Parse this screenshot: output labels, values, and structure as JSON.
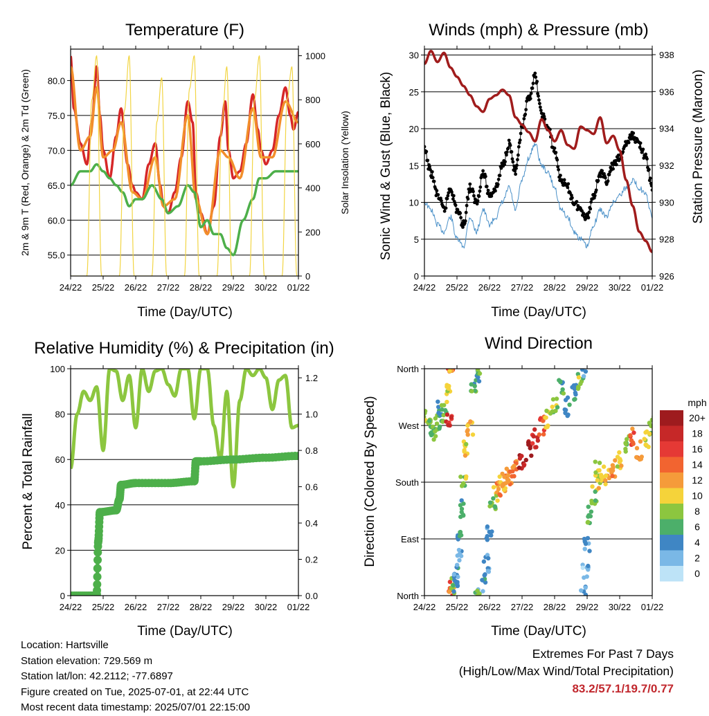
{
  "panels": {
    "temperature": {
      "title": "Temperature (F)",
      "ylabel": "2m & 9m T (Red, Orange) & 2m Td (Green)",
      "y2label": "Solar Insolation (Yellow)",
      "xlabel": "Time (Day/UTC)"
    },
    "winds": {
      "title": "Winds (mph) & Pressure (mb)",
      "ylabel": "Sonic Wind & Gust (Blue, Black)",
      "y2label": "Station Pressure (Maroon)",
      "xlabel": "Time (Day/UTC)"
    },
    "humidity": {
      "title": "Relative Humidity (%) & Precipitation (in)",
      "ylabel": "Percent & Total Rainfall",
      "xlabel": "Time (Day/UTC)"
    },
    "direction": {
      "title": "Wind Direction",
      "ylabel": "Direction (Colored By Speed)",
      "xlabel": "Time (Day/UTC)"
    }
  },
  "colorbar": {
    "unit": "mph",
    "labels": [
      "20+",
      "18",
      "16",
      "14",
      "12",
      "10",
      "8",
      "6",
      "4",
      "2",
      "0"
    ],
    "colors": [
      "#9e1b1e",
      "#c62828",
      "#e53935",
      "#f26430",
      "#f59b3a",
      "#f5d33a",
      "#8cc63f",
      "#4caf6a",
      "#3f86c4",
      "#7ab8e6",
      "#bde3f7"
    ]
  },
  "station": {
    "location": "Location: Hartsville",
    "elevation": "Station elevation: 729.569 m",
    "latlon": "Station lat/lon: 42.2112; -77.6897",
    "created": "Figure created on Tue, 2025-07-01, at 22:44 UTC",
    "recent": "Most recent data timestamp: 2025/07/01 22:15:00"
  },
  "extremes": {
    "line1": "Extremes For Past 7 Days",
    "line2": "(High/Low/Max Wind/Total Precipitation)",
    "values": "83.2/57.1/19.7/0.77"
  },
  "chart_data": [
    {
      "type": "line",
      "title": "Temperature (F)",
      "xlabel": "Time (Day/UTC)",
      "ylabel": "2m & 9m T (Red, Orange) & 2m Td (Green)",
      "y2label": "Solar Insolation (Yellow)",
      "x_ticks": [
        "24/22",
        "25/22",
        "26/22",
        "27/22",
        "28/22",
        "29/22",
        "30/22",
        "01/22"
      ],
      "xlim": [
        0,
        7
      ],
      "ylim": [
        52,
        84.5
      ],
      "y_ticks": [
        "55.0",
        "60.0",
        "65.0",
        "70.0",
        "75.0",
        "80.0"
      ],
      "y2lim": [
        0,
        1030
      ],
      "y2_ticks": [
        "0",
        "200",
        "400",
        "600",
        "800",
        "1000"
      ],
      "series": [
        {
          "color": "#d62728",
          "x": [
            0,
            0.1,
            0.3,
            0.5,
            0.65,
            0.8,
            0.9,
            1.0,
            1.2,
            1.4,
            1.55,
            1.75,
            1.9,
            2.0,
            2.2,
            2.4,
            2.6,
            2.75,
            2.85,
            3.0,
            3.2,
            3.4,
            3.6,
            3.75,
            3.85,
            4.0,
            4.2,
            4.4,
            4.6,
            4.75,
            4.85,
            5.0,
            5.2,
            5.4,
            5.6,
            5.75,
            5.85,
            6.0,
            6.2,
            6.4,
            6.6,
            6.75,
            6.85,
            7.0
          ],
          "y": [
            83.5,
            76,
            71,
            68,
            74,
            82,
            75,
            70,
            66,
            72,
            76,
            68,
            65,
            64,
            63,
            68,
            71,
            65,
            62,
            61,
            64,
            69,
            77,
            74,
            64,
            61,
            58,
            62,
            72,
            77,
            70,
            66,
            67,
            71,
            78,
            73,
            70,
            68,
            70,
            75,
            79,
            75,
            73,
            75.5
          ]
        },
        {
          "color": "#f28e2b",
          "x": [
            0,
            0.3,
            0.6,
            0.8,
            1.0,
            1.3,
            1.55,
            1.9,
            2.2,
            2.6,
            2.85,
            3.2,
            3.6,
            3.85,
            4.2,
            4.6,
            4.85,
            5.2,
            5.6,
            5.85,
            6.2,
            6.6,
            7.0
          ],
          "y": [
            82,
            70,
            72,
            79,
            69,
            70,
            74,
            64,
            63,
            69,
            62,
            63,
            75,
            63,
            58,
            70,
            69,
            66,
            76,
            69,
            69,
            77,
            74
          ]
        },
        {
          "color": "#4daf4a",
          "x": [
            0,
            0.3,
            0.6,
            0.8,
            1.0,
            1.2,
            1.4,
            1.6,
            1.8,
            2.0,
            2.2,
            2.5,
            2.8,
            3.0,
            3.3,
            3.6,
            3.8,
            4.0,
            4.2,
            4.4,
            4.6,
            4.8,
            5.0,
            5.3,
            5.6,
            5.8,
            6.0,
            6.3,
            6.6,
            6.8,
            7.0
          ],
          "y": [
            65,
            67,
            67,
            68,
            67,
            66,
            65,
            64,
            62,
            63,
            63,
            65,
            63,
            61,
            62,
            65,
            64,
            59,
            60,
            58,
            58,
            56,
            55,
            60,
            63,
            66,
            66,
            67,
            67,
            67,
            67
          ]
        },
        {
          "color": "#f2d544",
          "axis": "y2",
          "x": [
            0,
            0.5,
            0.65,
            0.8,
            0.95,
            1.5,
            1.65,
            1.8,
            1.95,
            2.5,
            2.65,
            2.8,
            2.95,
            3.5,
            3.65,
            3.8,
            3.95,
            4.5,
            4.65,
            4.8,
            4.95,
            5.5,
            5.65,
            5.8,
            5.95,
            6.5,
            6.65,
            6.8,
            6.95
          ],
          "y": [
            0,
            0,
            800,
            1000,
            0,
            0,
            750,
            1000,
            0,
            0,
            700,
            900,
            0,
            0,
            850,
            1000,
            0,
            0,
            700,
            950,
            0,
            0,
            800,
            1000,
            0,
            0,
            800,
            950,
            0
          ]
        }
      ]
    },
    {
      "type": "line",
      "title": "Winds (mph) & Pressure (mb)",
      "xlabel": "Time (Day/UTC)",
      "ylabel": "Sonic Wind & Gust (Blue, Black)",
      "y2label": "Station Pressure (Maroon)",
      "x_ticks": [
        "24/22",
        "25/22",
        "26/22",
        "27/22",
        "28/22",
        "29/22",
        "30/22",
        "01/22"
      ],
      "xlim": [
        0,
        7
      ],
      "ylim": [
        0,
        30.8
      ],
      "y_ticks": [
        "0",
        "5",
        "10",
        "15",
        "20",
        "25",
        "30"
      ],
      "y2lim": [
        926,
        938.3
      ],
      "y2_ticks": [
        "926",
        "928",
        "930",
        "932",
        "934",
        "936",
        "938"
      ],
      "series": [
        {
          "color": "#4a90c8",
          "x": [
            0,
            0.2,
            0.4,
            0.6,
            0.8,
            1.0,
            1.2,
            1.4,
            1.6,
            1.8,
            2.0,
            2.2,
            2.4,
            2.6,
            2.8,
            3.0,
            3.2,
            3.4,
            3.6,
            3.8,
            4.0,
            4.2,
            4.4,
            4.6,
            4.8,
            5.0,
            5.2,
            5.4,
            5.6,
            5.8,
            6.0,
            6.2,
            6.4,
            6.6,
            6.8,
            7.0
          ],
          "y": [
            10,
            9,
            7,
            6,
            8,
            5,
            4,
            8,
            6,
            9,
            7,
            8,
            10,
            12,
            9,
            13,
            16,
            18,
            15,
            14,
            12,
            9,
            8,
            6,
            5,
            4,
            7,
            9,
            8,
            10,
            11,
            12,
            13,
            12,
            11,
            8
          ]
        },
        {
          "color": "#111111",
          "x": [
            0,
            0.2,
            0.4,
            0.6,
            0.8,
            1.0,
            1.2,
            1.4,
            1.6,
            1.8,
            2.0,
            2.2,
            2.4,
            2.6,
            2.8,
            3.0,
            3.2,
            3.4,
            3.6,
            3.8,
            4.0,
            4.2,
            4.4,
            4.6,
            4.8,
            5.0,
            5.2,
            5.4,
            5.6,
            5.8,
            6.0,
            6.2,
            6.4,
            6.6,
            6.8,
            7.0
          ],
          "y": [
            17,
            14,
            11,
            9,
            12,
            9,
            7,
            12,
            10,
            14,
            11,
            12,
            15,
            18,
            14,
            20,
            24,
            27,
            22,
            20,
            17,
            13,
            12,
            10,
            9,
            8,
            11,
            14,
            13,
            15,
            16,
            18,
            19,
            18,
            16,
            12
          ]
        },
        {
          "color": "#a01c1c",
          "axis": "y2",
          "x": [
            0,
            0.2,
            0.4,
            0.6,
            0.8,
            1.0,
            1.2,
            1.4,
            1.6,
            1.8,
            2.0,
            2.2,
            2.4,
            2.6,
            2.8,
            3.0,
            3.2,
            3.4,
            3.6,
            3.8,
            4.0,
            4.2,
            4.4,
            4.6,
            4.8,
            5.0,
            5.2,
            5.4,
            5.6,
            5.8,
            6.0,
            6.2,
            6.4,
            6.6,
            6.8,
            7.0
          ],
          "y": [
            937.5,
            938.2,
            937.6,
            938.1,
            937.3,
            936.8,
            936.3,
            935.8,
            935.2,
            934.9,
            935.6,
            935.8,
            936.1,
            935.8,
            934.6,
            934.2,
            933.8,
            933.3,
            934.5,
            933.9,
            933.3,
            933.9,
            933.1,
            932.9,
            934.1,
            933.9,
            933.7,
            934.6,
            933.2,
            933.6,
            932.8,
            931.2,
            929.8,
            928.4,
            927.9,
            927.3
          ]
        }
      ]
    },
    {
      "type": "line",
      "title": "Relative Humidity (%) & Precipitation (in)",
      "xlabel": "Time (Day/UTC)",
      "ylabel": "Percent & Total Rainfall",
      "x_ticks": [
        "24/22",
        "25/22",
        "26/22",
        "27/22",
        "28/22",
        "29/22",
        "30/22",
        "01/22"
      ],
      "xlim": [
        0,
        7
      ],
      "ylim": [
        0,
        100
      ],
      "y_ticks": [
        "0",
        "20",
        "40",
        "60",
        "80",
        "100"
      ],
      "y2lim": [
        0,
        1.25
      ],
      "y2_ticks": [
        "0.0",
        "0.2",
        "0.4",
        "0.6",
        "0.8",
        "1.0",
        "1.2"
      ],
      "series": [
        {
          "color": "#8cc63f",
          "x": [
            0,
            0.2,
            0.4,
            0.6,
            0.8,
            1.0,
            1.2,
            1.4,
            1.6,
            1.8,
            2.0,
            2.2,
            2.4,
            2.6,
            2.8,
            3.0,
            3.2,
            3.4,
            3.6,
            3.8,
            4.0,
            4.2,
            4.4,
            4.6,
            4.8,
            5.0,
            5.2,
            5.4,
            5.6,
            5.8,
            6.0,
            6.2,
            6.4,
            6.6,
            6.8,
            7.0
          ],
          "y": [
            56,
            80,
            90,
            86,
            92,
            64,
            100,
            99,
            86,
            97,
            74,
            100,
            90,
            99,
            100,
            93,
            88,
            100,
            100,
            78,
            100,
            100,
            75,
            60,
            90,
            48,
            86,
            100,
            97,
            100,
            96,
            82,
            95,
            97,
            74,
            75
          ]
        },
        {
          "color": "#4daf4a",
          "axis": "y2",
          "x": [
            0,
            0.6,
            0.8,
            0.85,
            0.9,
            1.4,
            1.5,
            1.55,
            2.0,
            3.0,
            3.8,
            3.85,
            4.0,
            5.0,
            6.0,
            7.0
          ],
          "y": [
            0,
            0,
            0,
            0.3,
            0.46,
            0.47,
            0.53,
            0.61,
            0.62,
            0.62,
            0.63,
            0.74,
            0.74,
            0.75,
            0.76,
            0.77
          ]
        }
      ]
    },
    {
      "type": "scatter",
      "title": "Wind Direction",
      "xlabel": "Time (Day/UTC)",
      "ylabel": "Direction (Colored By Speed)",
      "x_ticks": [
        "24/22",
        "25/22",
        "26/22",
        "27/22",
        "28/22",
        "29/22",
        "30/22",
        "01/22"
      ],
      "xlim": [
        0,
        7
      ],
      "ylim": [
        0,
        360
      ],
      "y_ticks": [
        "North",
        "East",
        "South",
        "West",
        "North"
      ],
      "legend": "colorbar-right",
      "series": [
        {
          "x": [
            0,
            0.1,
            0.2,
            0.3,
            0.4,
            0.5,
            0.6,
            0.7,
            0.75,
            0.8,
            0.85,
            0.9,
            0.95,
            1.0,
            1.05,
            1.1,
            1.15,
            1.2,
            1.3,
            1.4,
            1.5,
            1.6,
            1.7,
            1.8,
            1.9,
            2.0,
            2.1,
            2.2,
            2.3,
            2.4,
            2.5,
            2.6,
            2.8,
            3.0,
            3.2,
            3.4,
            3.6,
            3.8,
            4.0,
            4.2,
            4.4,
            4.6,
            4.8,
            4.9,
            4.95,
            5.0,
            5.1,
            5.2,
            5.3,
            5.4,
            5.6,
            5.8,
            6.0,
            6.2,
            6.4,
            6.6,
            6.8,
            7.0
          ],
          "y": [
            290,
            280,
            270,
            260,
            275,
            300,
            290,
            320,
            280,
            10,
            5,
            15,
            20,
            30,
            60,
            100,
            140,
            180,
            230,
            270,
            330,
            355,
            5,
            20,
            50,
            100,
            150,
            165,
            170,
            180,
            185,
            190,
            200,
            210,
            230,
            250,
            270,
            280,
            300,
            330,
            300,
            320,
            340,
            0,
            40,
            80,
            130,
            160,
            200,
            185,
            190,
            200,
            215,
            240,
            250,
            230,
            250,
            270
          ],
          "speeds": [
            8,
            9,
            7,
            6,
            8,
            5,
            7,
            9,
            18,
            16,
            12,
            8,
            4,
            4,
            3,
            5,
            6,
            8,
            10,
            12,
            6,
            4,
            8,
            4,
            3,
            4,
            7,
            10,
            12,
            11,
            13,
            12,
            14,
            18,
            20,
            17,
            15,
            10,
            8,
            6,
            5,
            4,
            8,
            3,
            2,
            4,
            6,
            8,
            9,
            10,
            11,
            12,
            10,
            8,
            14,
            12,
            10,
            8
          ]
        }
      ]
    }
  ]
}
